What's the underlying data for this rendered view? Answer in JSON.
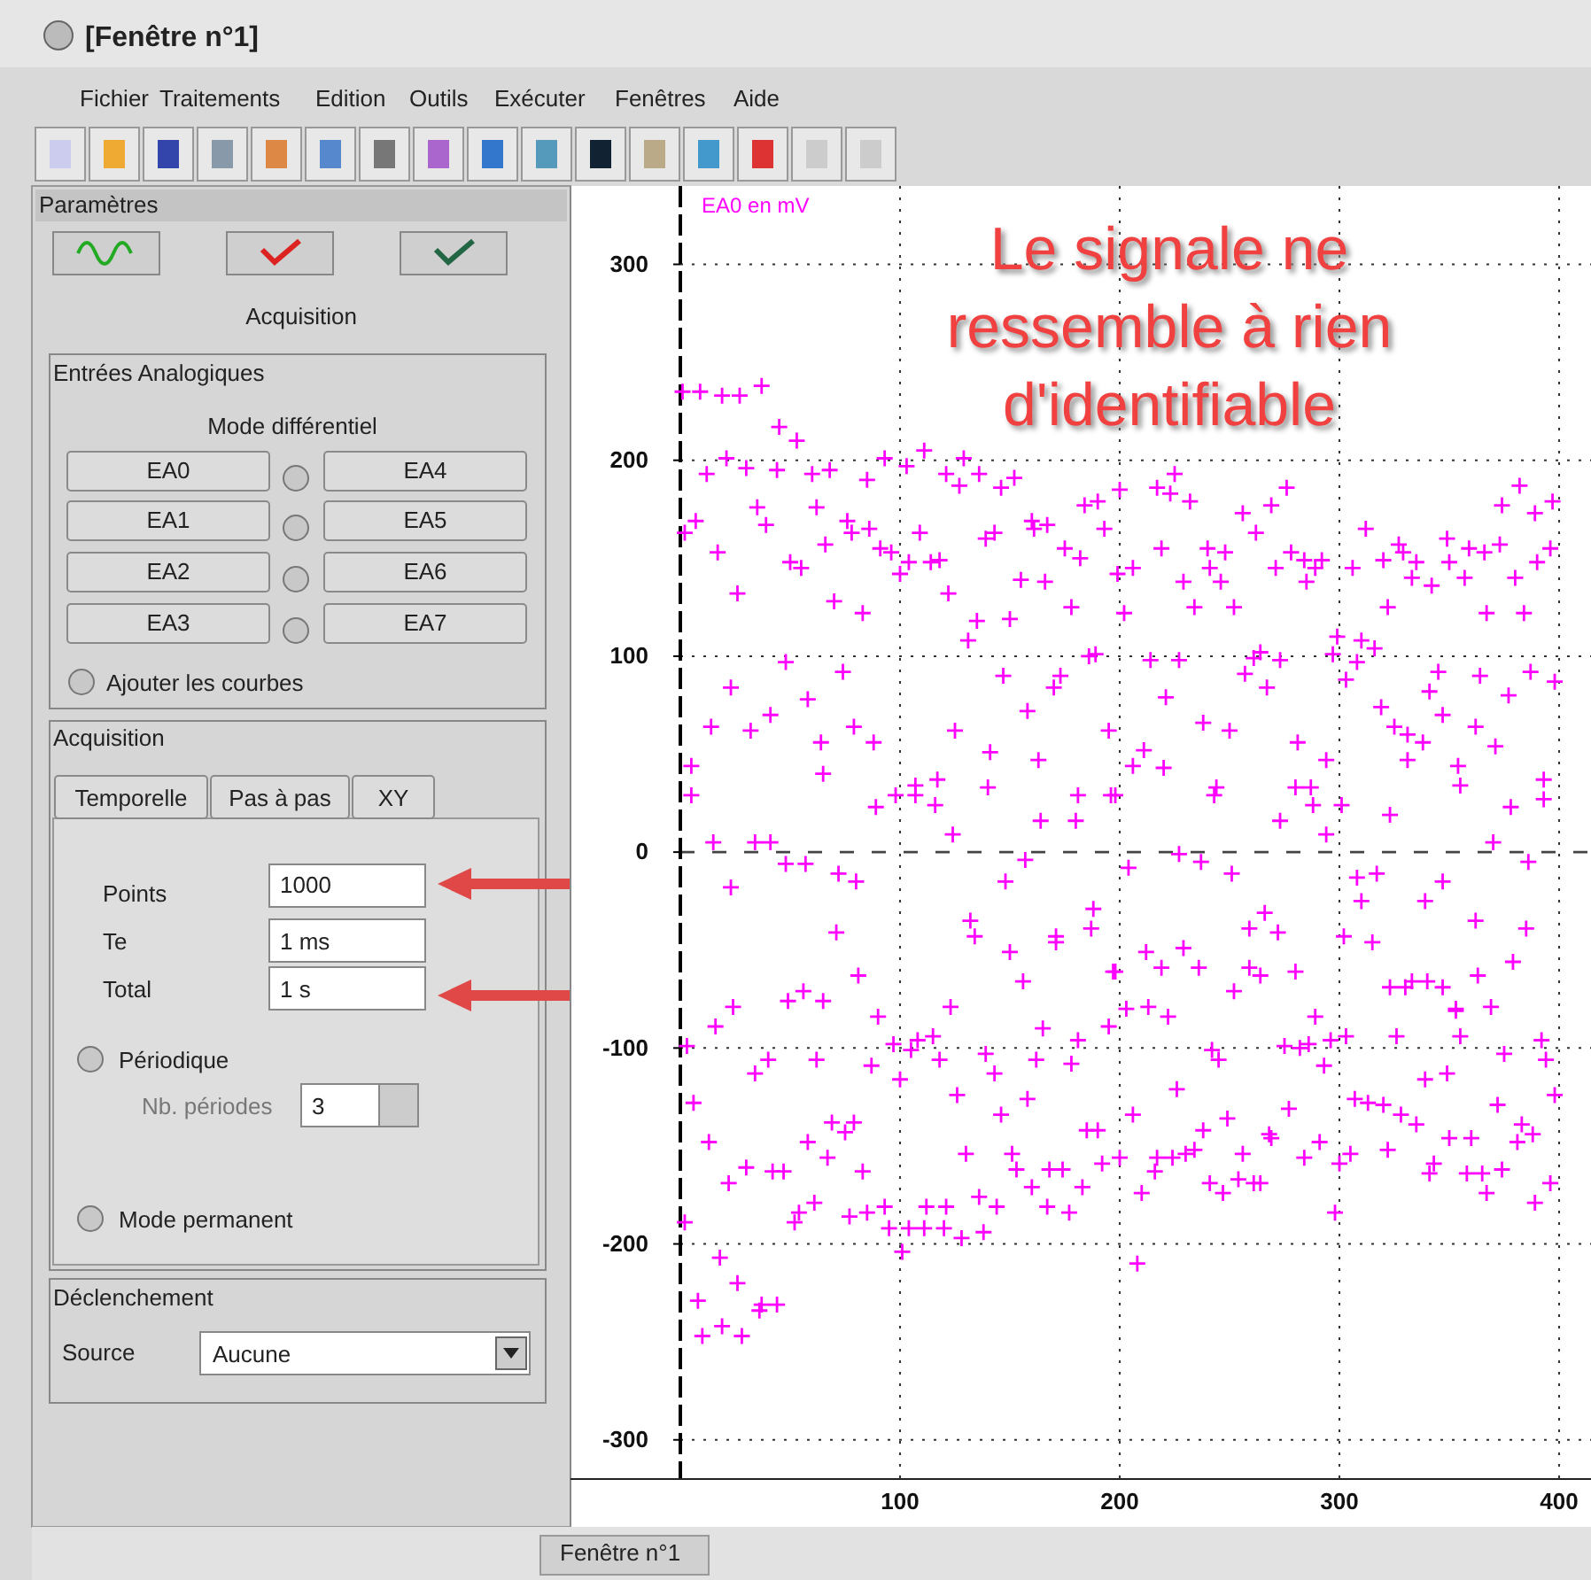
{
  "chart_data": [
    {
      "type": "scatter",
      "ylabel": "EA0 en mV",
      "annotations": [
        "Le signale ne ressemble à rien d'identifiable"
      ],
      "xlim": [
        -50,
        400
      ],
      "xticks": [
        100,
        200,
        300,
        400
      ],
      "ylim": [
        -320,
        340
      ],
      "yticks": [
        -300,
        -200,
        -100,
        0,
        100,
        200,
        300
      ],
      "grid": true,
      "marker": "cross",
      "ref_lines": [
        {
          "axis": "y",
          "value": 0,
          "line_style": "dashed"
        },
        {
          "axis": "x",
          "value": 0,
          "line_style": "dashed",
          "color": "#000000"
        }
      ],
      "series": [
        {
          "color": "#ff00ff",
          "x": [
            1,
            9,
            19,
            27,
            37,
            45,
            53,
            21,
            12,
            30,
            44,
            60,
            68,
            85,
            93,
            103,
            111,
            129,
            121,
            136,
            127,
            146,
            152,
            7,
            2,
            35,
            39,
            62,
            76,
            78,
            86,
            17,
            66,
            50,
            55,
            91,
            96,
            109,
            100,
            104,
            114,
            118,
            26,
            70,
            83,
            122,
            139,
            143,
            160,
            161,
            167,
            184,
            190,
            193,
            175,
            182,
            155,
            166,
            178,
            150,
            135,
            131,
            48,
            74,
            23,
            58,
            147,
            173,
            170,
            186,
            189,
            14,
            32,
            41,
            79,
            64,
            88,
            5,
            65,
            5,
            89,
            98,
            107,
            107,
            117,
            116,
            125,
            141,
            140,
            124,
            158,
            163,
            164,
            180,
            181,
            195,
            196,
            15,
            34,
            41,
            48,
            57,
            72,
            80,
            23,
            71,
            81,
            56,
            49,
            65,
            24,
            123,
            157,
            148,
            132,
            134,
            150,
            156,
            171,
            171,
            188,
            187,
            197,
            16,
            3,
            90,
            97,
            108,
            115,
            105,
            40,
            34,
            62,
            87,
            100,
            118,
            139,
            143,
            165,
            162,
            178,
            181,
            195,
            6,
            13,
            69,
            79,
            75,
            58,
            67,
            30,
            42,
            47,
            83,
            22,
            61,
            54,
            52,
            2,
            77,
            85,
            93,
            95,
            104,
            111,
            120,
            112,
            121,
            128,
            138,
            101,
            126,
            158,
            146,
            130,
            151,
            153,
            168,
            174,
            160,
            136,
            144,
            167,
            177,
            183,
            185,
            190,
            192,
            18,
            26,
            8,
            37,
            44,
            36,
            19,
            10,
            28,
            200,
            217,
            223,
            225,
            232,
            256,
            269,
            276,
            262,
            219,
            240,
            248,
            241,
            206,
            199,
            229,
            246,
            271,
            278,
            284,
            292,
            289,
            285,
            234,
            252,
            202,
            299,
            297,
            214,
            227,
            257,
            261,
            264,
            273,
            267,
            221,
            312,
            306,
            320,
            327,
            329,
            335,
            333,
            342,
            349,
            350,
            357,
            359,
            366,
            373,
            374,
            382,
            389,
            397,
            396,
            390,
            380,
            322,
            367,
            384,
            310,
            316,
            308,
            303,
            345,
            341,
            364,
            387,
            377,
            398,
            238,
            250,
            211,
            206,
            220,
            244,
            243,
            281,
            294,
            280,
            287,
            288,
            301,
            273,
            294,
            198,
            227,
            237,
            204,
            251,
            266,
            259,
            272,
            212,
            229,
            219,
            236,
            259,
            264,
            280,
            198,
            252,
            213,
            203,
            319,
            347,
            325,
            331,
            338,
            362,
            371,
            331,
            354,
            355,
            393,
            393,
            378,
            323,
            370,
            386,
            308,
            317,
            347,
            310,
            339,
            362,
            385,
            302,
            315,
            379,
            363,
            323,
            330,
            333,
            340,
            347,
            353,
            369,
            222,
            242,
            245,
            275,
            282,
            286,
            289,
            293,
            296,
            303,
            326,
            353,
            355,
            375,
            392,
            394,
            206,
            226,
            249,
            238,
            277,
            268,
            269,
            291,
            256,
            284,
            200,
            217,
            224,
            230,
            234,
            216,
            210,
            241,
            247,
            254,
            261,
            264,
            300,
            298,
            208,
            305,
            322,
            307,
            313,
            320,
            328,
            335,
            339,
            349,
            350,
            360,
            343,
            341,
            358,
            365,
            367,
            374,
            372,
            383,
            388,
            381,
            398,
            396,
            389
          ],
          "values": [
            235,
            235,
            233,
            233,
            238,
            217,
            210,
            201,
            193,
            196,
            195,
            193,
            195,
            190,
            201,
            197,
            205,
            201,
            193,
            193,
            187,
            186,
            191,
            169,
            163,
            176,
            167,
            176,
            169,
            163,
            165,
            153,
            157,
            148,
            145,
            155,
            153,
            163,
            142,
            148,
            148,
            149,
            132,
            128,
            122,
            132,
            160,
            163,
            169,
            165,
            167,
            177,
            179,
            165,
            155,
            150,
            139,
            138,
            125,
            119,
            118,
            108,
            97,
            92,
            84,
            78,
            90,
            90,
            84,
            100,
            101,
            64,
            62,
            70,
            64,
            56,
            56,
            44,
            40,
            29,
            23,
            29,
            29,
            34,
            37,
            24,
            62,
            51,
            33,
            9,
            72,
            47,
            16,
            16,
            29,
            62,
            29,
            5,
            5,
            5,
            -6,
            -6,
            -11,
            -15,
            -18,
            -41,
            -63,
            -71,
            -76,
            -76,
            -79,
            -79,
            -4,
            -15,
            -35,
            -43,
            -51,
            -66,
            -43,
            -46,
            -29,
            -39,
            -61,
            -89,
            -99,
            -84,
            -98,
            -96,
            -94,
            -101,
            -106,
            -113,
            -106,
            -109,
            -116,
            -106,
            -103,
            -113,
            -90,
            -106,
            -108,
            -96,
            -89,
            -128,
            -148,
            -138,
            -138,
            -143,
            -148,
            -156,
            -161,
            -163,
            -163,
            -163,
            -169,
            -179,
            -184,
            -189,
            -189,
            -186,
            -184,
            -181,
            -192,
            -192,
            -192,
            -192,
            -181,
            -181,
            -197,
            -194,
            -204,
            -124,
            -126,
            -134,
            -154,
            -154,
            -162,
            -162,
            -162,
            -171,
            -176,
            -181,
            -181,
            -184,
            -171,
            -142,
            -142,
            -159,
            -207,
            -220,
            -229,
            -231,
            -231,
            -234,
            -242,
            -247,
            -247,
            185,
            186,
            183,
            193,
            179,
            173,
            177,
            186,
            163,
            155,
            155,
            153,
            145,
            145,
            142,
            138,
            138,
            145,
            153,
            149,
            149,
            145,
            138,
            125,
            125,
            122,
            110,
            101,
            98,
            98,
            91,
            99,
            102,
            98,
            84,
            79,
            165,
            145,
            149,
            157,
            153,
            148,
            140,
            136,
            160,
            148,
            140,
            155,
            153,
            157,
            177,
            187,
            173,
            179,
            155,
            148,
            140,
            125,
            122,
            122,
            108,
            104,
            97,
            88,
            92,
            82,
            90,
            92,
            80,
            87,
            66,
            62,
            52,
            44,
            43,
            33,
            29,
            56,
            47,
            33,
            33,
            24,
            24,
            16,
            9,
            29,
            -1,
            -5,
            -8,
            -11,
            -31,
            -39,
            -41,
            -51,
            -49,
            -59,
            -59,
            -59,
            -63,
            -61,
            -61,
            -71,
            -79,
            -80,
            74,
            70,
            64,
            60,
            56,
            64,
            54,
            47,
            44,
            34,
            37,
            27,
            23,
            19,
            5,
            -5,
            -13,
            -11,
            -15,
            -25,
            -25,
            -35,
            -39,
            -43,
            -46,
            -56,
            -63,
            -69,
            -69,
            -66,
            -66,
            -69,
            -80,
            -79,
            -84,
            -101,
            -106,
            -99,
            -100,
            -98,
            -84,
            -109,
            -96,
            -94,
            -94,
            -81,
            -94,
            -103,
            -96,
            -106,
            -134,
            -121,
            -136,
            -142,
            -131,
            -144,
            -146,
            -148,
            -154,
            -156,
            -156,
            -156,
            -156,
            -154,
            -152,
            -163,
            -174,
            -169,
            -174,
            -167,
            -169,
            -169,
            -159,
            -184,
            -210,
            -154,
            -152,
            -126,
            -128,
            -129,
            -134,
            -139,
            -116,
            -113,
            -146,
            -146,
            -159,
            -164,
            -164,
            -164,
            -174,
            -162,
            -129,
            -139,
            -144,
            -148,
            -124,
            -169,
            -179
          ]
        }
      ]
    },
    {
      "type": "other",
      "title": "[Fenêtre n°1]",
      "annotations": [
        "Fichier",
        "Traitements",
        "Edition",
        "Outils",
        "Exécuter",
        "Fenêtres",
        "Aide",
        "Paramètres",
        "Acquisition",
        "Entrées Analogiques",
        "Mode différentiel",
        "EA0",
        "EA1",
        "EA2",
        "EA3",
        "EA4",
        "EA5",
        "EA6",
        "EA7",
        "Ajouter les courbes",
        "Acquisition",
        "Temporelle",
        "Pas à pas",
        "XY",
        "Points",
        "1000",
        "Te",
        "1 ms",
        "Total",
        "1 s",
        "Périodique",
        "Nb. périodes",
        "3",
        "Mode permanent",
        "Déclenchement",
        "Source",
        "Aucune",
        "Fenêtre n°1"
      ]
    }
  ]
}
